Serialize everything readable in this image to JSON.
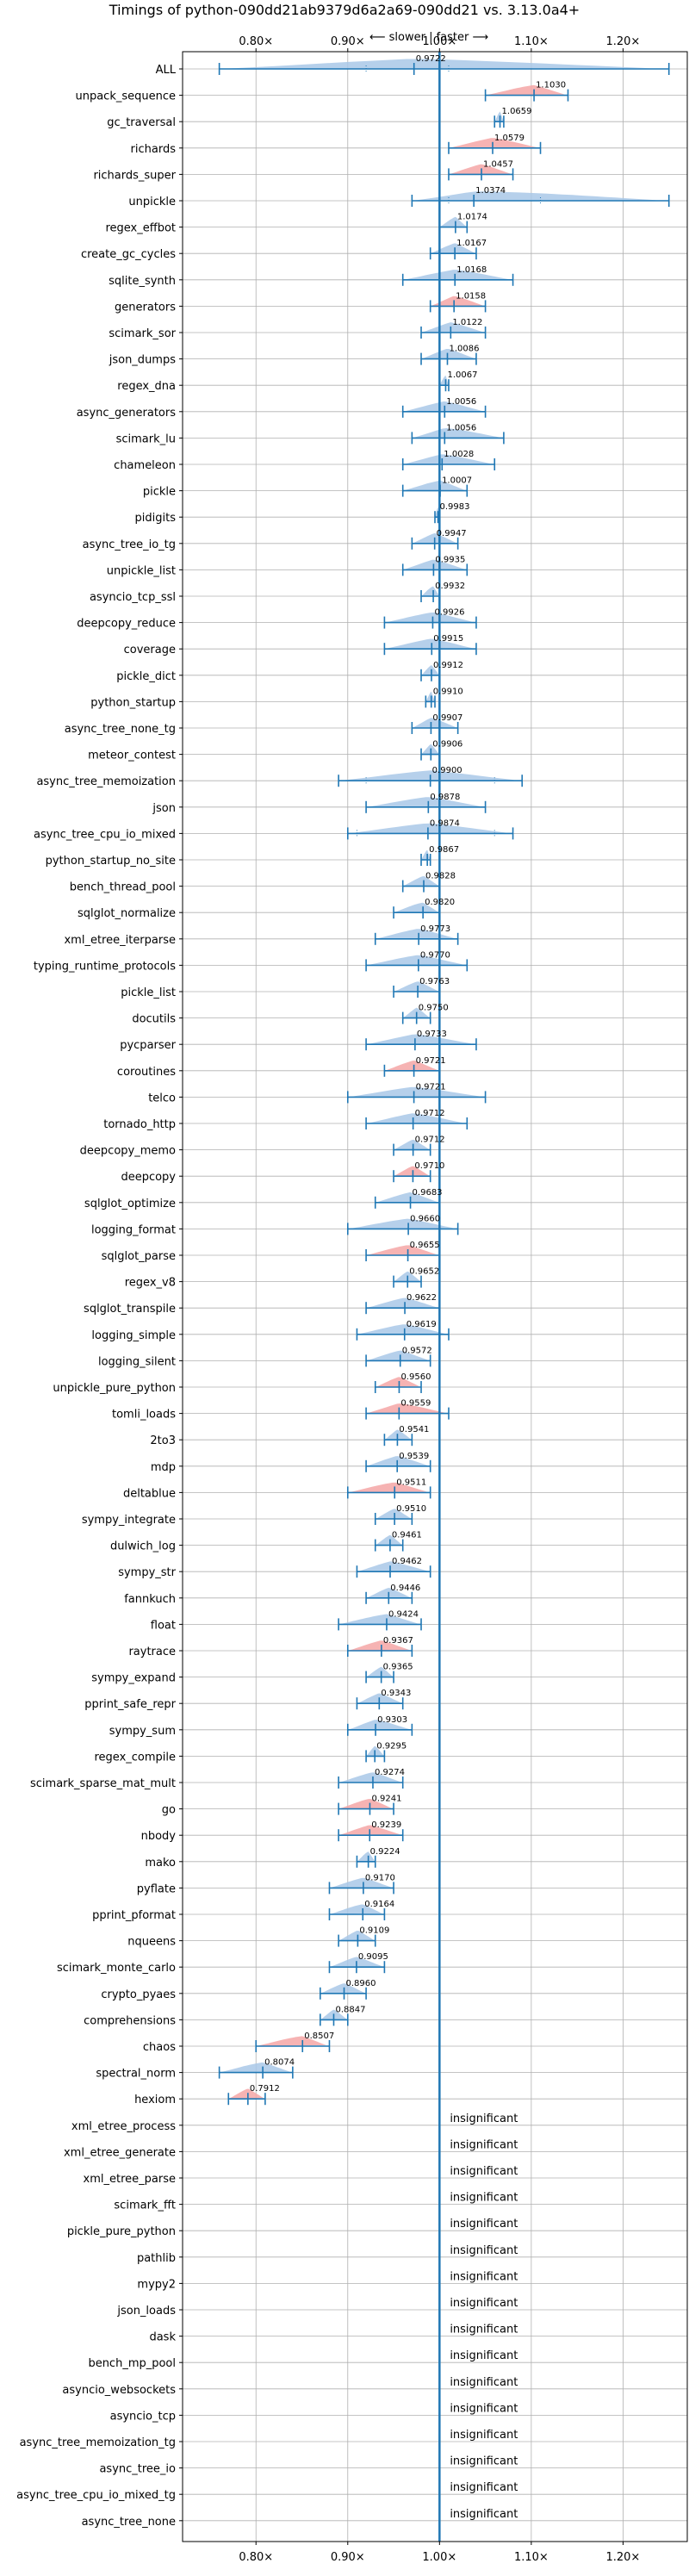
{
  "chart_data": {
    "type": "violin",
    "title": "Timings of python-090dd21ab9379d6a2a69-090dd21 vs. 3.13.0a4+",
    "subtitle": "⟵ slower | faster ⟶",
    "xlim": [
      0.72,
      1.27
    ],
    "x_ticks": [
      {
        "value": 0.8,
        "label": "0.80×"
      },
      {
        "value": 0.9,
        "label": "0.90×"
      },
      {
        "value": 1.0,
        "label": "1.00×"
      },
      {
        "value": 1.1,
        "label": "1.10×"
      },
      {
        "value": 1.2,
        "label": "1.20×"
      }
    ],
    "reference_line": 1.0,
    "grid": true,
    "colors": {
      "faster": "#f4a6a6",
      "slower_or_neutral": "#a9c8e8",
      "line": "#1f77b4",
      "grid": "#b0b0b0"
    },
    "insignificant_label": "insignificant",
    "benchmarks": [
      {
        "name": "ALL",
        "value": 0.9722,
        "label": "0.9722",
        "lo": 0.76,
        "hi": 1.25,
        "q1": 0.92,
        "q3": 1.01,
        "sig": false
      },
      {
        "name": "unpack_sequence",
        "value": 1.103,
        "label": "1.1030",
        "lo": 1.05,
        "hi": 1.14,
        "sig": true
      },
      {
        "name": "gc_traversal",
        "value": 1.0659,
        "label": "1.0659",
        "lo": 1.06,
        "hi": 1.07,
        "sig": false
      },
      {
        "name": "richards",
        "value": 1.0579,
        "label": "1.0579",
        "lo": 1.01,
        "hi": 1.11,
        "sig": true
      },
      {
        "name": "richards_super",
        "value": 1.0457,
        "label": "1.0457",
        "lo": 1.01,
        "hi": 1.08,
        "sig": true
      },
      {
        "name": "unpickle",
        "value": 1.0374,
        "label": "1.0374",
        "lo": 0.97,
        "hi": 1.25,
        "q1": 1.01,
        "q3": 1.11,
        "sig": false
      },
      {
        "name": "regex_effbot",
        "value": 1.0174,
        "label": "1.0174",
        "lo": 1.0,
        "hi": 1.03,
        "sig": false
      },
      {
        "name": "create_gc_cycles",
        "value": 1.0167,
        "label": "1.0167",
        "lo": 0.99,
        "hi": 1.04,
        "sig": false
      },
      {
        "name": "sqlite_synth",
        "value": 1.0168,
        "label": "1.0168",
        "lo": 0.96,
        "hi": 1.08,
        "sig": false
      },
      {
        "name": "generators",
        "value": 1.0158,
        "label": "1.0158",
        "lo": 0.99,
        "hi": 1.05,
        "sig": true
      },
      {
        "name": "scimark_sor",
        "value": 1.0122,
        "label": "1.0122",
        "lo": 0.98,
        "hi": 1.05,
        "sig": false
      },
      {
        "name": "json_dumps",
        "value": 1.0086,
        "label": "1.0086",
        "lo": 0.98,
        "hi": 1.04,
        "sig": false
      },
      {
        "name": "regex_dna",
        "value": 1.0067,
        "label": "1.0067",
        "lo": 1.0,
        "hi": 1.01,
        "sig": false
      },
      {
        "name": "async_generators",
        "value": 1.0056,
        "label": "1.0056",
        "lo": 0.96,
        "hi": 1.05,
        "sig": false
      },
      {
        "name": "scimark_lu",
        "value": 1.0056,
        "label": "1.0056",
        "lo": 0.97,
        "hi": 1.07,
        "sig": false
      },
      {
        "name": "chameleon",
        "value": 1.0028,
        "label": "1.0028",
        "lo": 0.96,
        "hi": 1.06,
        "sig": false
      },
      {
        "name": "pickle",
        "value": 1.0007,
        "label": "1.0007",
        "lo": 0.96,
        "hi": 1.03,
        "sig": false
      },
      {
        "name": "pidigits",
        "value": 0.9983,
        "label": "0.9983",
        "lo": 0.995,
        "hi": 1.0,
        "sig": false
      },
      {
        "name": "async_tree_io_tg",
        "value": 0.9947,
        "label": "0.9947",
        "lo": 0.97,
        "hi": 1.02,
        "sig": false
      },
      {
        "name": "unpickle_list",
        "value": 0.9935,
        "label": "0.9935",
        "lo": 0.96,
        "hi": 1.03,
        "sig": false
      },
      {
        "name": "asyncio_tcp_ssl",
        "value": 0.9932,
        "label": "0.9932",
        "lo": 0.98,
        "hi": 1.0,
        "sig": false
      },
      {
        "name": "deepcopy_reduce",
        "value": 0.9926,
        "label": "0.9926",
        "lo": 0.94,
        "hi": 1.04,
        "sig": false
      },
      {
        "name": "coverage",
        "value": 0.9915,
        "label": "0.9915",
        "lo": 0.94,
        "hi": 1.04,
        "sig": false
      },
      {
        "name": "pickle_dict",
        "value": 0.9912,
        "label": "0.9912",
        "lo": 0.98,
        "hi": 1.0,
        "sig": false
      },
      {
        "name": "python_startup",
        "value": 0.991,
        "label": "0.9910",
        "lo": 0.985,
        "hi": 0.995,
        "sig": false
      },
      {
        "name": "async_tree_none_tg",
        "value": 0.9907,
        "label": "0.9907",
        "lo": 0.97,
        "hi": 1.02,
        "sig": false
      },
      {
        "name": "meteor_contest",
        "value": 0.9906,
        "label": "0.9906",
        "lo": 0.98,
        "hi": 1.0,
        "sig": false
      },
      {
        "name": "async_tree_memoization",
        "value": 0.99,
        "label": "0.9900",
        "lo": 0.89,
        "hi": 1.09,
        "q1": 0.92,
        "q3": 1.06,
        "sig": false
      },
      {
        "name": "json",
        "value": 0.9878,
        "label": "0.9878",
        "lo": 0.92,
        "hi": 1.05,
        "sig": false
      },
      {
        "name": "async_tree_cpu_io_mixed",
        "value": 0.9874,
        "label": "0.9874",
        "lo": 0.9,
        "hi": 1.08,
        "q1": 0.91,
        "q3": 1.06,
        "sig": false
      },
      {
        "name": "python_startup_no_site",
        "value": 0.9867,
        "label": "0.9867",
        "lo": 0.98,
        "hi": 0.99,
        "sig": false
      },
      {
        "name": "bench_thread_pool",
        "value": 0.9828,
        "label": "0.9828",
        "lo": 0.96,
        "hi": 1.0,
        "sig": false
      },
      {
        "name": "sqlglot_normalize",
        "value": 0.982,
        "label": "0.9820",
        "lo": 0.95,
        "hi": 1.0,
        "sig": false
      },
      {
        "name": "xml_etree_iterparse",
        "value": 0.9773,
        "label": "0.9773",
        "lo": 0.93,
        "hi": 1.02,
        "sig": false
      },
      {
        "name": "typing_runtime_protocols",
        "value": 0.977,
        "label": "0.9770",
        "lo": 0.92,
        "hi": 1.03,
        "sig": false
      },
      {
        "name": "pickle_list",
        "value": 0.9763,
        "label": "0.9763",
        "lo": 0.95,
        "hi": 1.0,
        "sig": false
      },
      {
        "name": "docutils",
        "value": 0.975,
        "label": "0.9750",
        "lo": 0.96,
        "hi": 0.99,
        "sig": false
      },
      {
        "name": "pycparser",
        "value": 0.9733,
        "label": "0.9733",
        "lo": 0.92,
        "hi": 1.04,
        "sig": false
      },
      {
        "name": "coroutines",
        "value": 0.9721,
        "label": "0.9721",
        "lo": 0.94,
        "hi": 1.0,
        "sig": true
      },
      {
        "name": "telco",
        "value": 0.9721,
        "label": "0.9721",
        "lo": 0.9,
        "hi": 1.05,
        "sig": false
      },
      {
        "name": "tornado_http",
        "value": 0.9712,
        "label": "0.9712",
        "lo": 0.92,
        "hi": 1.03,
        "sig": false
      },
      {
        "name": "deepcopy_memo",
        "value": 0.9712,
        "label": "0.9712",
        "lo": 0.95,
        "hi": 0.99,
        "sig": false
      },
      {
        "name": "deepcopy",
        "value": 0.971,
        "label": "0.9710",
        "lo": 0.95,
        "hi": 0.99,
        "sig": true
      },
      {
        "name": "sqlglot_optimize",
        "value": 0.9683,
        "label": "0.9683",
        "lo": 0.93,
        "hi": 1.0,
        "sig": false
      },
      {
        "name": "logging_format",
        "value": 0.966,
        "label": "0.9660",
        "lo": 0.9,
        "hi": 1.02,
        "sig": false
      },
      {
        "name": "sqlglot_parse",
        "value": 0.9655,
        "label": "0.9655",
        "lo": 0.92,
        "hi": 1.0,
        "sig": true
      },
      {
        "name": "regex_v8",
        "value": 0.9652,
        "label": "0.9652",
        "lo": 0.95,
        "hi": 0.98,
        "sig": false
      },
      {
        "name": "sqlglot_transpile",
        "value": 0.9622,
        "label": "0.9622",
        "lo": 0.92,
        "hi": 1.0,
        "sig": false
      },
      {
        "name": "logging_simple",
        "value": 0.9619,
        "label": "0.9619",
        "lo": 0.91,
        "hi": 1.01,
        "sig": false
      },
      {
        "name": "logging_silent",
        "value": 0.9572,
        "label": "0.9572",
        "lo": 0.92,
        "hi": 0.99,
        "sig": false
      },
      {
        "name": "unpickle_pure_python",
        "value": 0.956,
        "label": "0.9560",
        "lo": 0.93,
        "hi": 0.98,
        "sig": true
      },
      {
        "name": "tomli_loads",
        "value": 0.9559,
        "label": "0.9559",
        "lo": 0.92,
        "hi": 1.01,
        "sig": true
      },
      {
        "name": "2to3",
        "value": 0.9541,
        "label": "0.9541",
        "lo": 0.94,
        "hi": 0.97,
        "sig": false
      },
      {
        "name": "mdp",
        "value": 0.9539,
        "label": "0.9539",
        "lo": 0.92,
        "hi": 0.99,
        "sig": false
      },
      {
        "name": "deltablue",
        "value": 0.9511,
        "label": "0.9511",
        "lo": 0.9,
        "hi": 0.99,
        "sig": true
      },
      {
        "name": "sympy_integrate",
        "value": 0.951,
        "label": "0.9510",
        "lo": 0.93,
        "hi": 0.97,
        "sig": false
      },
      {
        "name": "dulwich_log",
        "value": 0.9461,
        "label": "0.9461",
        "lo": 0.93,
        "hi": 0.96,
        "sig": false
      },
      {
        "name": "sympy_str",
        "value": 0.9462,
        "label": "0.9462",
        "lo": 0.91,
        "hi": 0.99,
        "sig": false
      },
      {
        "name": "fannkuch",
        "value": 0.9446,
        "label": "0.9446",
        "lo": 0.92,
        "hi": 0.97,
        "sig": false
      },
      {
        "name": "float",
        "value": 0.9424,
        "label": "0.9424",
        "lo": 0.89,
        "hi": 0.98,
        "sig": false
      },
      {
        "name": "raytrace",
        "value": 0.9367,
        "label": "0.9367",
        "lo": 0.9,
        "hi": 0.97,
        "sig": true
      },
      {
        "name": "sympy_expand",
        "value": 0.9365,
        "label": "0.9365",
        "lo": 0.92,
        "hi": 0.95,
        "sig": false
      },
      {
        "name": "pprint_safe_repr",
        "value": 0.9343,
        "label": "0.9343",
        "lo": 0.91,
        "hi": 0.96,
        "sig": false
      },
      {
        "name": "sympy_sum",
        "value": 0.9303,
        "label": "0.9303",
        "lo": 0.9,
        "hi": 0.97,
        "sig": false
      },
      {
        "name": "regex_compile",
        "value": 0.9295,
        "label": "0.9295",
        "lo": 0.92,
        "hi": 0.94,
        "sig": false
      },
      {
        "name": "scimark_sparse_mat_mult",
        "value": 0.9274,
        "label": "0.9274",
        "lo": 0.89,
        "hi": 0.96,
        "sig": false
      },
      {
        "name": "go",
        "value": 0.9241,
        "label": "0.9241",
        "lo": 0.89,
        "hi": 0.95,
        "sig": true
      },
      {
        "name": "nbody",
        "value": 0.9239,
        "label": "0.9239",
        "lo": 0.89,
        "hi": 0.96,
        "sig": true
      },
      {
        "name": "mako",
        "value": 0.9224,
        "label": "0.9224",
        "lo": 0.91,
        "hi": 0.93,
        "sig": false
      },
      {
        "name": "pyflate",
        "value": 0.917,
        "label": "0.9170",
        "lo": 0.88,
        "hi": 0.95,
        "sig": false
      },
      {
        "name": "pprint_pformat",
        "value": 0.9164,
        "label": "0.9164",
        "lo": 0.88,
        "hi": 0.94,
        "sig": false
      },
      {
        "name": "nqueens",
        "value": 0.9109,
        "label": "0.9109",
        "lo": 0.89,
        "hi": 0.93,
        "sig": false
      },
      {
        "name": "scimark_monte_carlo",
        "value": 0.9095,
        "label": "0.9095",
        "lo": 0.88,
        "hi": 0.94,
        "sig": false
      },
      {
        "name": "crypto_pyaes",
        "value": 0.896,
        "label": "0.8960",
        "lo": 0.87,
        "hi": 0.92,
        "sig": false
      },
      {
        "name": "comprehensions",
        "value": 0.8847,
        "label": "0.8847",
        "lo": 0.87,
        "hi": 0.9,
        "sig": false
      },
      {
        "name": "chaos",
        "value": 0.8507,
        "label": "0.8507",
        "lo": 0.8,
        "hi": 0.88,
        "sig": true
      },
      {
        "name": "spectral_norm",
        "value": 0.8074,
        "label": "0.8074",
        "lo": 0.76,
        "hi": 0.84,
        "sig": false
      },
      {
        "name": "hexiom",
        "value": 0.7912,
        "label": "0.7912",
        "lo": 0.77,
        "hi": 0.81,
        "sig": true
      }
    ],
    "insignificant": [
      "xml_etree_process",
      "xml_etree_generate",
      "xml_etree_parse",
      "scimark_fft",
      "pickle_pure_python",
      "pathlib",
      "mypy2",
      "json_loads",
      "dask",
      "bench_mp_pool",
      "asyncio_websockets",
      "asyncio_tcp",
      "async_tree_memoization_tg",
      "async_tree_io",
      "async_tree_cpu_io_mixed_tg",
      "async_tree_none"
    ]
  }
}
